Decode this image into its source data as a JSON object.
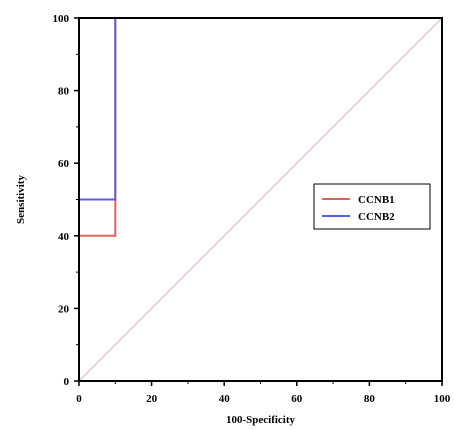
{
  "chart_data": {
    "type": "line",
    "xlabel": "100-Specificity",
    "ylabel": "Sensitivity",
    "xlim": [
      0,
      100
    ],
    "ylim": [
      0,
      100
    ],
    "xticks": [
      0,
      20,
      40,
      60,
      80,
      100
    ],
    "yticks": [
      0,
      20,
      40,
      60,
      80,
      100
    ],
    "grid": false,
    "legend_position": "right-middle",
    "series": [
      {
        "name": "CCNB1",
        "color": "#e0605c",
        "x": [
          0,
          0,
          10,
          10,
          100
        ],
        "y": [
          0,
          40,
          40,
          100,
          100
        ]
      },
      {
        "name": "CCNB2",
        "color": "#5a5ee0",
        "x": [
          0,
          0,
          10,
          10,
          100
        ],
        "y": [
          0,
          50,
          50,
          100,
          100
        ]
      }
    ],
    "reference_line": {
      "x": [
        0,
        100
      ],
      "y": [
        0,
        100
      ],
      "color": "#e8b8b8"
    }
  }
}
